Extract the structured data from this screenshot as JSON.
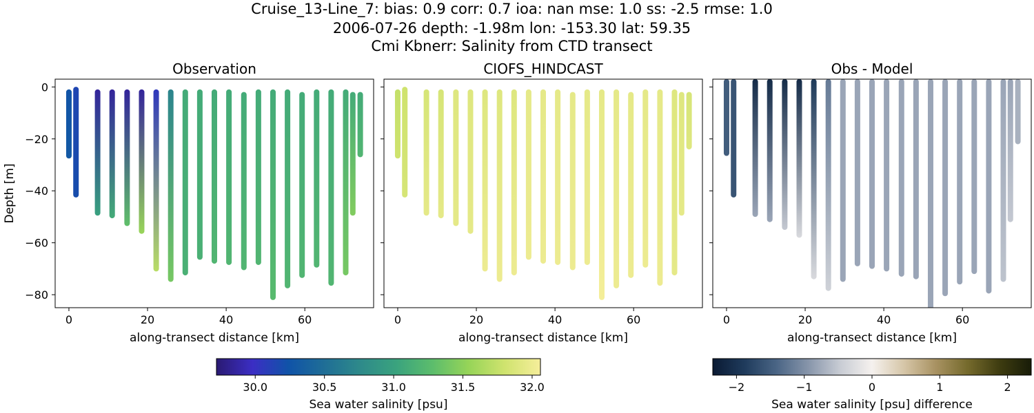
{
  "title": {
    "line1": "Cruise_13-Line_7: bias: 0.9  corr: 0.7  ioa: nan  mse: 1.0  ss: -2.5  rmse: 1.0",
    "line2": "2006-07-26 depth: -1.98m lon: -153.30 lat: 59.35",
    "line3": "Cmi Kbnerr: Salinity from CTD transect"
  },
  "chart_data": [
    {
      "type": "scatter",
      "title": "Observation",
      "xlabel": "along-transect distance [km]",
      "ylabel": "Depth [m]",
      "xlim": [
        -3.5,
        77.5
      ],
      "ylim": [
        -85,
        3
      ],
      "xticks": [
        0,
        20,
        40,
        60
      ],
      "yticks": [
        0,
        -20,
        -40,
        -60,
        -80
      ],
      "colorbar": "salinity",
      "casts": [
        {
          "x": 0.0,
          "top": -2,
          "bottom": -26.5,
          "value_top": 30.25,
          "value_bottom": 30.3
        },
        {
          "x": 1.8,
          "top": -1,
          "bottom": -41.5,
          "value_top": 30.15,
          "value_bottom": 30.2
        },
        {
          "x": 7.3,
          "top": -2,
          "bottom": -48.5,
          "value_top": 29.85,
          "value_bottom": 31.0
        },
        {
          "x": 11.0,
          "top": -2,
          "bottom": -49.5,
          "value_top": 29.85,
          "value_bottom": 31.1
        },
        {
          "x": 14.8,
          "top": -2,
          "bottom": -52.5,
          "value_top": 29.85,
          "value_bottom": 31.3
        },
        {
          "x": 18.5,
          "top": -2,
          "bottom": -55.5,
          "value_top": 29.85,
          "value_bottom": 31.55
        },
        {
          "x": 22.2,
          "top": -2,
          "bottom": -70.0,
          "value_top": 30.05,
          "value_bottom": 31.7
        },
        {
          "x": 25.9,
          "top": -2,
          "bottom": -74.0,
          "value_top": 30.7,
          "value_bottom": 31.4
        },
        {
          "x": 29.6,
          "top": -2,
          "bottom": -71.5,
          "value_top": 31.1,
          "value_bottom": 31.15
        },
        {
          "x": 33.3,
          "top": -2,
          "bottom": -65.5,
          "value_top": 31.1,
          "value_bottom": 31.15
        },
        {
          "x": 37.0,
          "top": -2,
          "bottom": -67.0,
          "value_top": 31.1,
          "value_bottom": 31.2
        },
        {
          "x": 40.7,
          "top": -2,
          "bottom": -67.5,
          "value_top": 31.1,
          "value_bottom": 31.2
        },
        {
          "x": 44.5,
          "top": -3,
          "bottom": -69.5,
          "value_top": 31.1,
          "value_bottom": 31.2
        },
        {
          "x": 48.2,
          "top": -2,
          "bottom": -67.5,
          "value_top": 31.1,
          "value_bottom": 31.2
        },
        {
          "x": 51.9,
          "top": -2,
          "bottom": -81.0,
          "value_top": 31.1,
          "value_bottom": 31.25
        },
        {
          "x": 55.6,
          "top": -2,
          "bottom": -76.5,
          "value_top": 31.1,
          "value_bottom": 31.2
        },
        {
          "x": 59.3,
          "top": -3,
          "bottom": -72.5,
          "value_top": 31.1,
          "value_bottom": 31.2
        },
        {
          "x": 63.0,
          "top": -2,
          "bottom": -68.5,
          "value_top": 31.1,
          "value_bottom": 31.2
        },
        {
          "x": 66.7,
          "top": -2,
          "bottom": -75.5,
          "value_top": 31.1,
          "value_bottom": 31.2
        },
        {
          "x": 70.4,
          "top": -2,
          "bottom": -71.5,
          "value_top": 31.1,
          "value_bottom": 31.4
        },
        {
          "x": 72.2,
          "top": -3,
          "bottom": -48.5,
          "value_top": 31.1,
          "value_bottom": 31.45
        },
        {
          "x": 74.1,
          "top": -3,
          "bottom": -26.0,
          "value_top": 31.1,
          "value_bottom": 31.2
        }
      ]
    },
    {
      "type": "scatter",
      "title": "CIOFS_HINDCAST",
      "xlabel": "along-transect distance [km]",
      "ylabel": "",
      "xlim": [
        -3.5,
        77.5
      ],
      "ylim": [
        -85,
        3
      ],
      "xticks": [
        0,
        20,
        40,
        60
      ],
      "yticks": [
        0,
        -20,
        -40,
        -60,
        -80
      ],
      "colorbar": "salinity",
      "casts": [
        {
          "x": 0.0,
          "top": -2,
          "bottom": -26.5,
          "value_top": 31.75,
          "value_bottom": 31.8
        },
        {
          "x": 1.8,
          "top": -1,
          "bottom": -41.5,
          "value_top": 31.8,
          "value_bottom": 31.85
        },
        {
          "x": 7.3,
          "top": -2,
          "bottom": -48.5,
          "value_top": 31.85,
          "value_bottom": 31.95
        },
        {
          "x": 11.0,
          "top": -2,
          "bottom": -49.5,
          "value_top": 31.85,
          "value_bottom": 31.95
        },
        {
          "x": 14.8,
          "top": -2,
          "bottom": -52.5,
          "value_top": 31.9,
          "value_bottom": 31.95
        },
        {
          "x": 18.5,
          "top": -2,
          "bottom": -55.5,
          "value_top": 31.9,
          "value_bottom": 31.95
        },
        {
          "x": 22.2,
          "top": -2,
          "bottom": -70.0,
          "value_top": 31.9,
          "value_bottom": 32.0
        },
        {
          "x": 25.9,
          "top": -2,
          "bottom": -74.0,
          "value_top": 31.9,
          "value_bottom": 32.0
        },
        {
          "x": 29.6,
          "top": -2,
          "bottom": -71.5,
          "value_top": 31.9,
          "value_bottom": 32.0
        },
        {
          "x": 33.3,
          "top": -2,
          "bottom": -65.5,
          "value_top": 31.95,
          "value_bottom": 32.0
        },
        {
          "x": 37.0,
          "top": -2,
          "bottom": -67.0,
          "value_top": 31.95,
          "value_bottom": 32.0
        },
        {
          "x": 40.7,
          "top": -2,
          "bottom": -67.5,
          "value_top": 31.95,
          "value_bottom": 32.0
        },
        {
          "x": 44.5,
          "top": -3,
          "bottom": -69.5,
          "value_top": 31.95,
          "value_bottom": 32.0
        },
        {
          "x": 48.2,
          "top": -2,
          "bottom": -67.5,
          "value_top": 31.95,
          "value_bottom": 32.0
        },
        {
          "x": 51.9,
          "top": -2,
          "bottom": -81.0,
          "value_top": 31.95,
          "value_bottom": 32.05
        },
        {
          "x": 55.6,
          "top": -2,
          "bottom": -76.5,
          "value_top": 31.95,
          "value_bottom": 32.0
        },
        {
          "x": 59.3,
          "top": -3,
          "bottom": -72.5,
          "value_top": 31.95,
          "value_bottom": 32.0
        },
        {
          "x": 63.0,
          "top": -2,
          "bottom": -68.5,
          "value_top": 31.95,
          "value_bottom": 32.0
        },
        {
          "x": 66.7,
          "top": -2,
          "bottom": -75.5,
          "value_top": 31.95,
          "value_bottom": 32.0
        },
        {
          "x": 70.4,
          "top": -2,
          "bottom": -71.5,
          "value_top": 31.9,
          "value_bottom": 31.95
        },
        {
          "x": 72.2,
          "top": -3,
          "bottom": -48.5,
          "value_top": 31.9,
          "value_bottom": 31.95
        },
        {
          "x": 74.1,
          "top": -3,
          "bottom": -23.0,
          "value_top": 31.85,
          "value_bottom": 31.9
        }
      ]
    },
    {
      "type": "scatter",
      "title": "Obs - Model",
      "xlabel": "along-transect distance [km]",
      "ylabel": "",
      "xlim": [
        -3.5,
        77.5
      ],
      "ylim": [
        -85,
        3
      ],
      "xticks": [
        0,
        20,
        40,
        60
      ],
      "yticks": [
        0,
        -20,
        -40,
        -60,
        -80
      ],
      "colorbar": "difference",
      "casts": [
        {
          "x": 0.0,
          "top": 2,
          "bottom": -25.5,
          "value_top": -1.5,
          "value_bottom": -1.5
        },
        {
          "x": 1.8,
          "top": 2,
          "bottom": -41.5,
          "value_top": -1.6,
          "value_bottom": -1.6
        },
        {
          "x": 7.3,
          "top": 2,
          "bottom": -49.0,
          "value_top": -2.1,
          "value_bottom": -0.8
        },
        {
          "x": 11.0,
          "top": 2,
          "bottom": -51.0,
          "value_top": -2.1,
          "value_bottom": -0.8
        },
        {
          "x": 14.8,
          "top": 2,
          "bottom": -54.0,
          "value_top": -2.1,
          "value_bottom": -0.5
        },
        {
          "x": 18.5,
          "top": 2,
          "bottom": -57.0,
          "value_top": -2.1,
          "value_bottom": -0.3
        },
        {
          "x": 22.2,
          "top": 2,
          "bottom": -73.0,
          "value_top": -1.9,
          "value_bottom": -0.3
        },
        {
          "x": 25.9,
          "top": 2,
          "bottom": -77.5,
          "value_top": -1.2,
          "value_bottom": -0.4
        },
        {
          "x": 29.6,
          "top": 2,
          "bottom": -74.0,
          "value_top": -0.8,
          "value_bottom": -0.8
        },
        {
          "x": 33.3,
          "top": 2,
          "bottom": -68.0,
          "value_top": -0.8,
          "value_bottom": -0.8
        },
        {
          "x": 37.0,
          "top": 2,
          "bottom": -69.0,
          "value_top": -0.8,
          "value_bottom": -0.8
        },
        {
          "x": 40.7,
          "top": 2,
          "bottom": -70.0,
          "value_top": -0.8,
          "value_bottom": -0.8
        },
        {
          "x": 44.5,
          "top": 2,
          "bottom": -72.0,
          "value_top": -0.8,
          "value_bottom": -0.8
        },
        {
          "x": 48.2,
          "top": 2,
          "bottom": -73.0,
          "value_top": -0.8,
          "value_bottom": -0.8
        },
        {
          "x": 51.9,
          "top": 2,
          "bottom": -85.0,
          "value_top": -0.8,
          "value_bottom": -0.8
        },
        {
          "x": 55.6,
          "top": 2,
          "bottom": -79.5,
          "value_top": -0.8,
          "value_bottom": -0.8
        },
        {
          "x": 59.3,
          "top": 2,
          "bottom": -75.0,
          "value_top": -0.8,
          "value_bottom": -0.8
        },
        {
          "x": 63.0,
          "top": 2,
          "bottom": -71.0,
          "value_top": -0.8,
          "value_bottom": -0.8
        },
        {
          "x": 66.7,
          "top": 2,
          "bottom": -78.5,
          "value_top": -0.8,
          "value_bottom": -0.8
        },
        {
          "x": 70.4,
          "top": 2,
          "bottom": -74.0,
          "value_top": -0.8,
          "value_bottom": -0.55
        },
        {
          "x": 72.2,
          "top": 2,
          "bottom": -51.0,
          "value_top": -0.8,
          "value_bottom": -0.5
        },
        {
          "x": 74.1,
          "top": 2,
          "bottom": -21.0,
          "value_top": -0.7,
          "value_bottom": -0.7
        }
      ]
    }
  ],
  "colorbars": {
    "salinity": {
      "label": "Sea water salinity [psu]",
      "range": [
        29.72,
        32.06
      ],
      "ticks": [
        30.0,
        30.5,
        31.0,
        31.5,
        32.0
      ],
      "tick_labels": [
        "30.0",
        "30.5",
        "31.0",
        "31.5",
        "32.0"
      ],
      "colormap": [
        "#2a1a72",
        "#3b2ec4",
        "#1053a8",
        "#1f6e96",
        "#2e8a8a",
        "#3aa37e",
        "#5cbd6c",
        "#96d458",
        "#cfe36e",
        "#f6ee9b"
      ]
    },
    "difference": {
      "label": "Sea water salinity [psu] difference",
      "range": [
        -2.35,
        2.35
      ],
      "ticks": [
        -2,
        -1,
        0,
        1,
        2
      ],
      "tick_labels": [
        "−2",
        "−1",
        "0",
        "1",
        "2"
      ],
      "colormap": [
        "#0a1a33",
        "#1f3b5c",
        "#4a6585",
        "#8795aa",
        "#c8ccd4",
        "#f5f1ee",
        "#d6c6a8",
        "#a89262",
        "#756a2c",
        "#3e3c10",
        "#181c08"
      ]
    }
  }
}
